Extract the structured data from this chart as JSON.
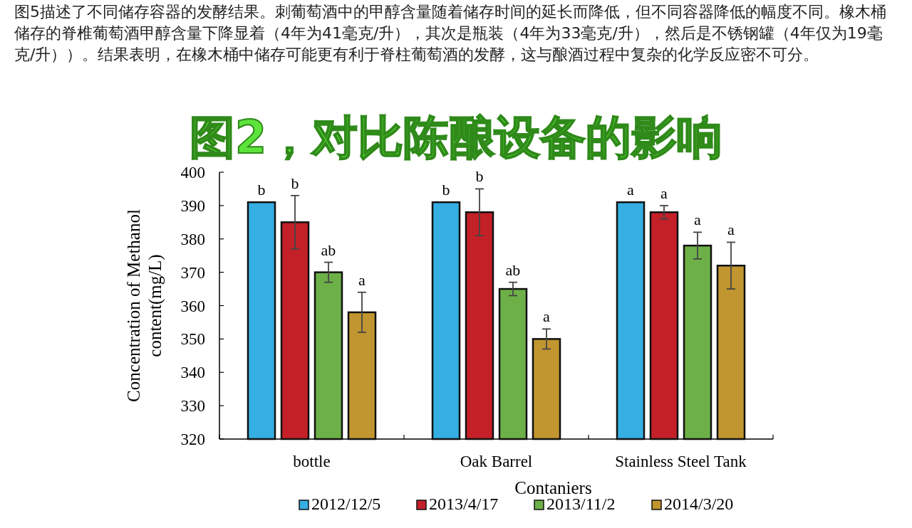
{
  "chart_data": {
    "type": "bar",
    "title": "图2，对比陈酿设备的影响",
    "subtitle": "图5描述了不同储存容器的发酵结果。刺葡萄酒中的甲醇含量随着储存时间的延长而降低，但不同容器降低的幅度不同。橡木桶储存的脊椎葡萄酒甲醇含量下降显着（4年为41毫克/升），其次是瓶装（4年为33毫克/升），然后是不锈钢罐（4年仅为19毫克/升））。结果表明，在橡木桶中储存可能更有利于脊柱葡萄酒的发酵，这与酿酒过程中复杂的化学反应密不可分。",
    "xlabel": "Contaniers",
    "ylabel": "Concentration of Methanol content(mg/L)",
    "categories": [
      "bottle",
      "Oak Barrel",
      "Stainless Steel Tank"
    ],
    "series": [
      {
        "name": "2012/12/5",
        "color": "#35aee2",
        "values": [
          391,
          391,
          391
        ],
        "errors": [
          null,
          null,
          null
        ],
        "value_labels": [
          "b",
          "b",
          "a"
        ]
      },
      {
        "name": "2013/4/17",
        "color": "#c42028",
        "values": [
          385,
          388,
          388
        ],
        "errors": [
          8,
          7,
          2
        ],
        "value_labels": [
          "b",
          "b",
          "a"
        ]
      },
      {
        "name": "2013/11/2",
        "color": "#6db047",
        "values": [
          370,
          365,
          378
        ],
        "errors": [
          3,
          2,
          4
        ],
        "value_labels": [
          "ab",
          "ab",
          "a"
        ]
      },
      {
        "name": "2014/3/20",
        "color": "#c19530",
        "values": [
          358,
          350,
          372
        ],
        "errors": [
          6,
          3,
          7
        ],
        "value_labels": [
          "a",
          "a",
          "a"
        ]
      }
    ],
    "ylim": [
      320,
      400
    ],
    "yticks": [
      320,
      330,
      340,
      350,
      360,
      370,
      380,
      390,
      400
    ],
    "grid": false,
    "legend": "bottom"
  }
}
